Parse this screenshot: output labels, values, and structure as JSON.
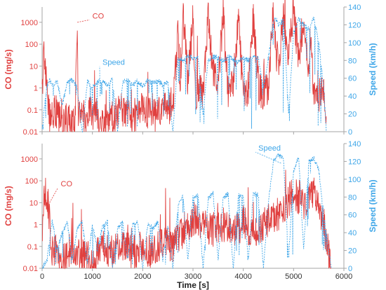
{
  "colors": {
    "co": "#e0403f",
    "speed": "#3ea6e8",
    "axis": "#a6a6a6",
    "tick_co": "#e0403f",
    "tick_speed": "#3ea6e8",
    "xtick": "#333333"
  },
  "chart_data": [
    {
      "type": "line",
      "xlim": [
        0,
        6000
      ],
      "x_ticks": [
        "0",
        "1000",
        "2000",
        "3000",
        "4000",
        "5000",
        "6000"
      ],
      "x_show_labels": false,
      "y_left": {
        "label": "CO (mg/s)",
        "scale": "log",
        "lim": [
          0.01,
          5000
        ],
        "ticks": [
          "0.01",
          "0.1",
          "1",
          "10",
          "100",
          "1000"
        ]
      },
      "y_right": {
        "label": "Speed  (km/h)",
        "lim": [
          0,
          140
        ],
        "ticks": [
          "0",
          "20",
          "40",
          "60",
          "80",
          "100",
          "120",
          "140"
        ]
      },
      "annotations": [
        {
          "text": "CO",
          "series": "co",
          "x": 700,
          "y": 1000,
          "label_x": 1000,
          "label_y": 1500
        },
        {
          "text": "Speed",
          "series": "speed",
          "x": 1150,
          "y": 40,
          "label_x": 1200,
          "label_y": 75,
          "axis": "right"
        }
      ],
      "series": [
        {
          "name": "CO",
          "axis": "left",
          "style": "solid",
          "x": [
            0,
            30,
            60,
            100,
            150,
            250,
            400,
            550,
            650,
            700,
            720,
            800,
            1000,
            1200,
            1400,
            1600,
            1800,
            2000,
            2200,
            2400,
            2600,
            2700,
            2750,
            2800,
            2900,
            3000,
            3050,
            3100,
            3200,
            3300,
            3400,
            3500,
            3600,
            3700,
            3800,
            3900,
            4000,
            4100,
            4200,
            4300,
            4400,
            4500,
            4550,
            4600,
            4650,
            4700,
            4800,
            4900,
            5000,
            5100,
            5200,
            5300,
            5350,
            5400,
            5500,
            5600,
            5650
          ],
          "y": [
            0.5,
            50,
            10,
            1,
            0.05,
            0.1,
            0.02,
            0.05,
            0.02,
            1000,
            0.1,
            0.05,
            0.08,
            0.03,
            0.05,
            0.1,
            0.05,
            0.1,
            0.05,
            0.1,
            0.1,
            300,
            1,
            3000,
            2,
            1500,
            0.5,
            1,
            0.5,
            2000,
            5,
            1,
            3000,
            0.5,
            2,
            1500,
            0.5,
            1,
            2000,
            1,
            0.5,
            1,
            100,
            3000,
            50,
            10,
            2000,
            30,
            3000,
            20,
            1500,
            10,
            50,
            1,
            0.5,
            1,
            0.05
          ]
        },
        {
          "name": "Speed",
          "axis": "right",
          "style": "dashed",
          "x": [
            0,
            100,
            150,
            200,
            300,
            400,
            500,
            600,
            700,
            800,
            900,
            1000,
            1100,
            1200,
            1300,
            1400,
            1500,
            1600,
            1700,
            1800,
            1900,
            2000,
            2100,
            2200,
            2300,
            2400,
            2500,
            2600,
            2700,
            2800,
            2900,
            3000,
            3100,
            3200,
            3300,
            3400,
            3500,
            3600,
            3700,
            3800,
            3900,
            4000,
            4100,
            4200,
            4300,
            4400,
            4500,
            4600,
            4650,
            4700,
            4800,
            4900,
            5000,
            5100,
            5200,
            5300,
            5400,
            5500,
            5600,
            5650
          ],
          "y": [
            5,
            52,
            58,
            52,
            56,
            30,
            55,
            58,
            50,
            0,
            57,
            50,
            55,
            58,
            52,
            58,
            0,
            55,
            58,
            52,
            57,
            50,
            58,
            55,
            58,
            52,
            56,
            0,
            83,
            80,
            85,
            82,
            84,
            20,
            80,
            84,
            83,
            80,
            84,
            82,
            78,
            83,
            80,
            84,
            82,
            50,
            83,
            125,
            127,
            120,
            125,
            20,
            110,
            126,
            120,
            115,
            128,
            100,
            50,
            0
          ],
          "smooth": false
        }
      ]
    },
    {
      "type": "line",
      "xlim": [
        0,
        6000
      ],
      "xlabel": "Time [s]",
      "x_ticks": [
        "0",
        "1000",
        "2000",
        "3000",
        "4000",
        "5000",
        "6000"
      ],
      "x_show_labels": true,
      "y_left": {
        "label": "CO (mg/s)",
        "scale": "log",
        "lim": [
          0.01,
          5000
        ],
        "ticks": [
          "0.01",
          "0.1",
          "1",
          "10",
          "100",
          "1000"
        ]
      },
      "y_right": {
        "label": "Speed  (km/h)",
        "lim": [
          0,
          140
        ],
        "ticks": [
          "0",
          "20",
          "40",
          "60",
          "80",
          "100",
          "120",
          "140"
        ]
      },
      "annotations": [
        {
          "text": "CO",
          "series": "co",
          "x": 150,
          "y": 10,
          "label_x": 370,
          "label_y": 55
        },
        {
          "text": "Speed",
          "series": "speed",
          "x": 4750,
          "y": 118,
          "label_x": 4300,
          "label_y": 132,
          "axis": "right"
        }
      ],
      "series": [
        {
          "name": "CO",
          "axis": "left",
          "style": "solid",
          "x": [
            0,
            40,
            80,
            120,
            160,
            200,
            300,
            400,
            500,
            600,
            800,
            1000,
            1200,
            1400,
            1600,
            1800,
            2000,
            2200,
            2400,
            2600,
            2800,
            3000,
            3200,
            3400,
            3600,
            3800,
            4000,
            4200,
            4400,
            4600,
            4800,
            5000,
            5200,
            5400,
            5500,
            5600,
            5700,
            5750
          ],
          "y": [
            0.5,
            50,
            20,
            10,
            0.5,
            0.05,
            0.1,
            0.02,
            0.05,
            0.1,
            0.05,
            0.02,
            0.1,
            0.05,
            0.1,
            0.05,
            0.1,
            0.05,
            0.2,
            0.1,
            0.5,
            2,
            1,
            0.5,
            1,
            0.5,
            1,
            0.5,
            1,
            2,
            5,
            30,
            10,
            20,
            5,
            1,
            0.05,
            0.01
          ]
        },
        {
          "name": "Speed",
          "axis": "right",
          "style": "dashed",
          "x": [
            0,
            100,
            200,
            300,
            400,
            500,
            600,
            700,
            800,
            900,
            1000,
            1100,
            1200,
            1300,
            1400,
            1500,
            1600,
            1700,
            1800,
            1900,
            2000,
            2100,
            2200,
            2300,
            2400,
            2500,
            2600,
            2700,
            2800,
            2900,
            3000,
            3100,
            3200,
            3300,
            3400,
            3500,
            3600,
            3700,
            3800,
            3900,
            4000,
            4100,
            4200,
            4300,
            4400,
            4500,
            4600,
            4700,
            4800,
            4900,
            5000,
            5100,
            5200,
            5300,
            5400,
            5500,
            5600,
            5700,
            5750
          ],
          "y": [
            0,
            10,
            55,
            20,
            40,
            52,
            10,
            45,
            52,
            5,
            50,
            20,
            48,
            52,
            0,
            45,
            52,
            10,
            48,
            52,
            0,
            50,
            45,
            52,
            10,
            48,
            0,
            70,
            82,
            10,
            80,
            82,
            0,
            78,
            84,
            10,
            80,
            83,
            0,
            82,
            80,
            10,
            84,
            82,
            0,
            75,
            120,
            128,
            122,
            10,
            110,
            125,
            20,
            120,
            124,
            110,
            60,
            20,
            0
          ]
        }
      ]
    }
  ]
}
